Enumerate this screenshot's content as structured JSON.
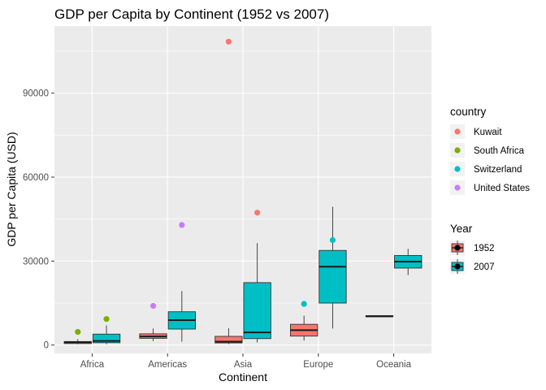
{
  "chart_data": {
    "type": "box",
    "title": "GDP per Capita by Continent (1952 vs 2007)",
    "xlabel": "Continent",
    "ylabel": "GDP per Capita (USD)",
    "categories": [
      "Africa",
      "Americas",
      "Asia",
      "Europe",
      "Oceania"
    ],
    "ylim": [
      -3000,
      114000
    ],
    "yticks": [
      0,
      30000,
      60000,
      90000
    ],
    "ytick_labels": [
      "0",
      "30000",
      "60000",
      "90000"
    ],
    "grid": true,
    "legend_position": "right",
    "series": [
      {
        "name": "1952",
        "color": "#F8766D",
        "boxes": [
          {
            "category": "Africa",
            "whisker_low": 300,
            "q1": 530,
            "median": 990,
            "q3": 1250,
            "whisker_high": 2100
          },
          {
            "category": "Americas",
            "whisker_low": 1400,
            "q1": 2400,
            "median": 3050,
            "q3": 4000,
            "whisker_high": 5900
          },
          {
            "category": "Asia",
            "whisker_low": 330,
            "q1": 750,
            "median": 1200,
            "q3": 3100,
            "whisker_high": 6000
          },
          {
            "category": "Europe",
            "whisker_low": 1600,
            "q1": 3200,
            "median": 5300,
            "q3": 7400,
            "whisker_high": 10500
          },
          {
            "category": "Oceania",
            "whisker_low": 10000,
            "q1": 10100,
            "median": 10300,
            "q3": 10500,
            "whisker_high": 10600
          }
        ]
      },
      {
        "name": "2007",
        "color": "#00BFC4",
        "boxes": [
          {
            "category": "Africa",
            "whisker_low": 280,
            "q1": 820,
            "median": 1450,
            "q3": 3900,
            "whisker_high": 7000
          },
          {
            "category": "Americas",
            "whisker_low": 1200,
            "q1": 5700,
            "median": 8900,
            "q3": 11900,
            "whisker_high": 19300
          },
          {
            "category": "Asia",
            "whisker_low": 940,
            "q1": 2300,
            "median": 4500,
            "q3": 22300,
            "whisker_high": 36400
          },
          {
            "category": "Europe",
            "whisker_low": 5900,
            "q1": 15000,
            "median": 28000,
            "q3": 33800,
            "whisker_high": 49400
          },
          {
            "category": "Oceania",
            "whisker_low": 25000,
            "q1": 27500,
            "median": 29800,
            "q3": 32000,
            "whisker_high": 34400
          }
        ]
      }
    ],
    "highlight_points": [
      {
        "country": "Kuwait",
        "category": "Asia",
        "year": "1952",
        "value": 108400
      },
      {
        "country": "Kuwait",
        "category": "Asia",
        "year": "2007",
        "value": 47300
      },
      {
        "country": "South Africa",
        "category": "Africa",
        "year": "1952",
        "value": 4700
      },
      {
        "country": "South Africa",
        "category": "Africa",
        "year": "2007",
        "value": 9300
      },
      {
        "country": "Switzerland",
        "category": "Europe",
        "year": "1952",
        "value": 14700
      },
      {
        "country": "Switzerland",
        "category": "Europe",
        "year": "2007",
        "value": 37500
      },
      {
        "country": "United States",
        "category": "Americas",
        "year": "1952",
        "value": 14000
      },
      {
        "country": "United States",
        "category": "Americas",
        "year": "2007",
        "value": 42900
      }
    ],
    "country_legend": {
      "title": "country",
      "items": [
        {
          "name": "Kuwait",
          "color": "#F8766D"
        },
        {
          "name": "South Africa",
          "color": "#7CAE00"
        },
        {
          "name": "Switzerland",
          "color": "#00BFC4"
        },
        {
          "name": "United States",
          "color": "#C77CFF"
        }
      ]
    },
    "year_legend": {
      "title": "Year",
      "items": [
        {
          "name": "1952",
          "color": "#F8766D"
        },
        {
          "name": "2007",
          "color": "#00BFC4"
        }
      ]
    }
  }
}
